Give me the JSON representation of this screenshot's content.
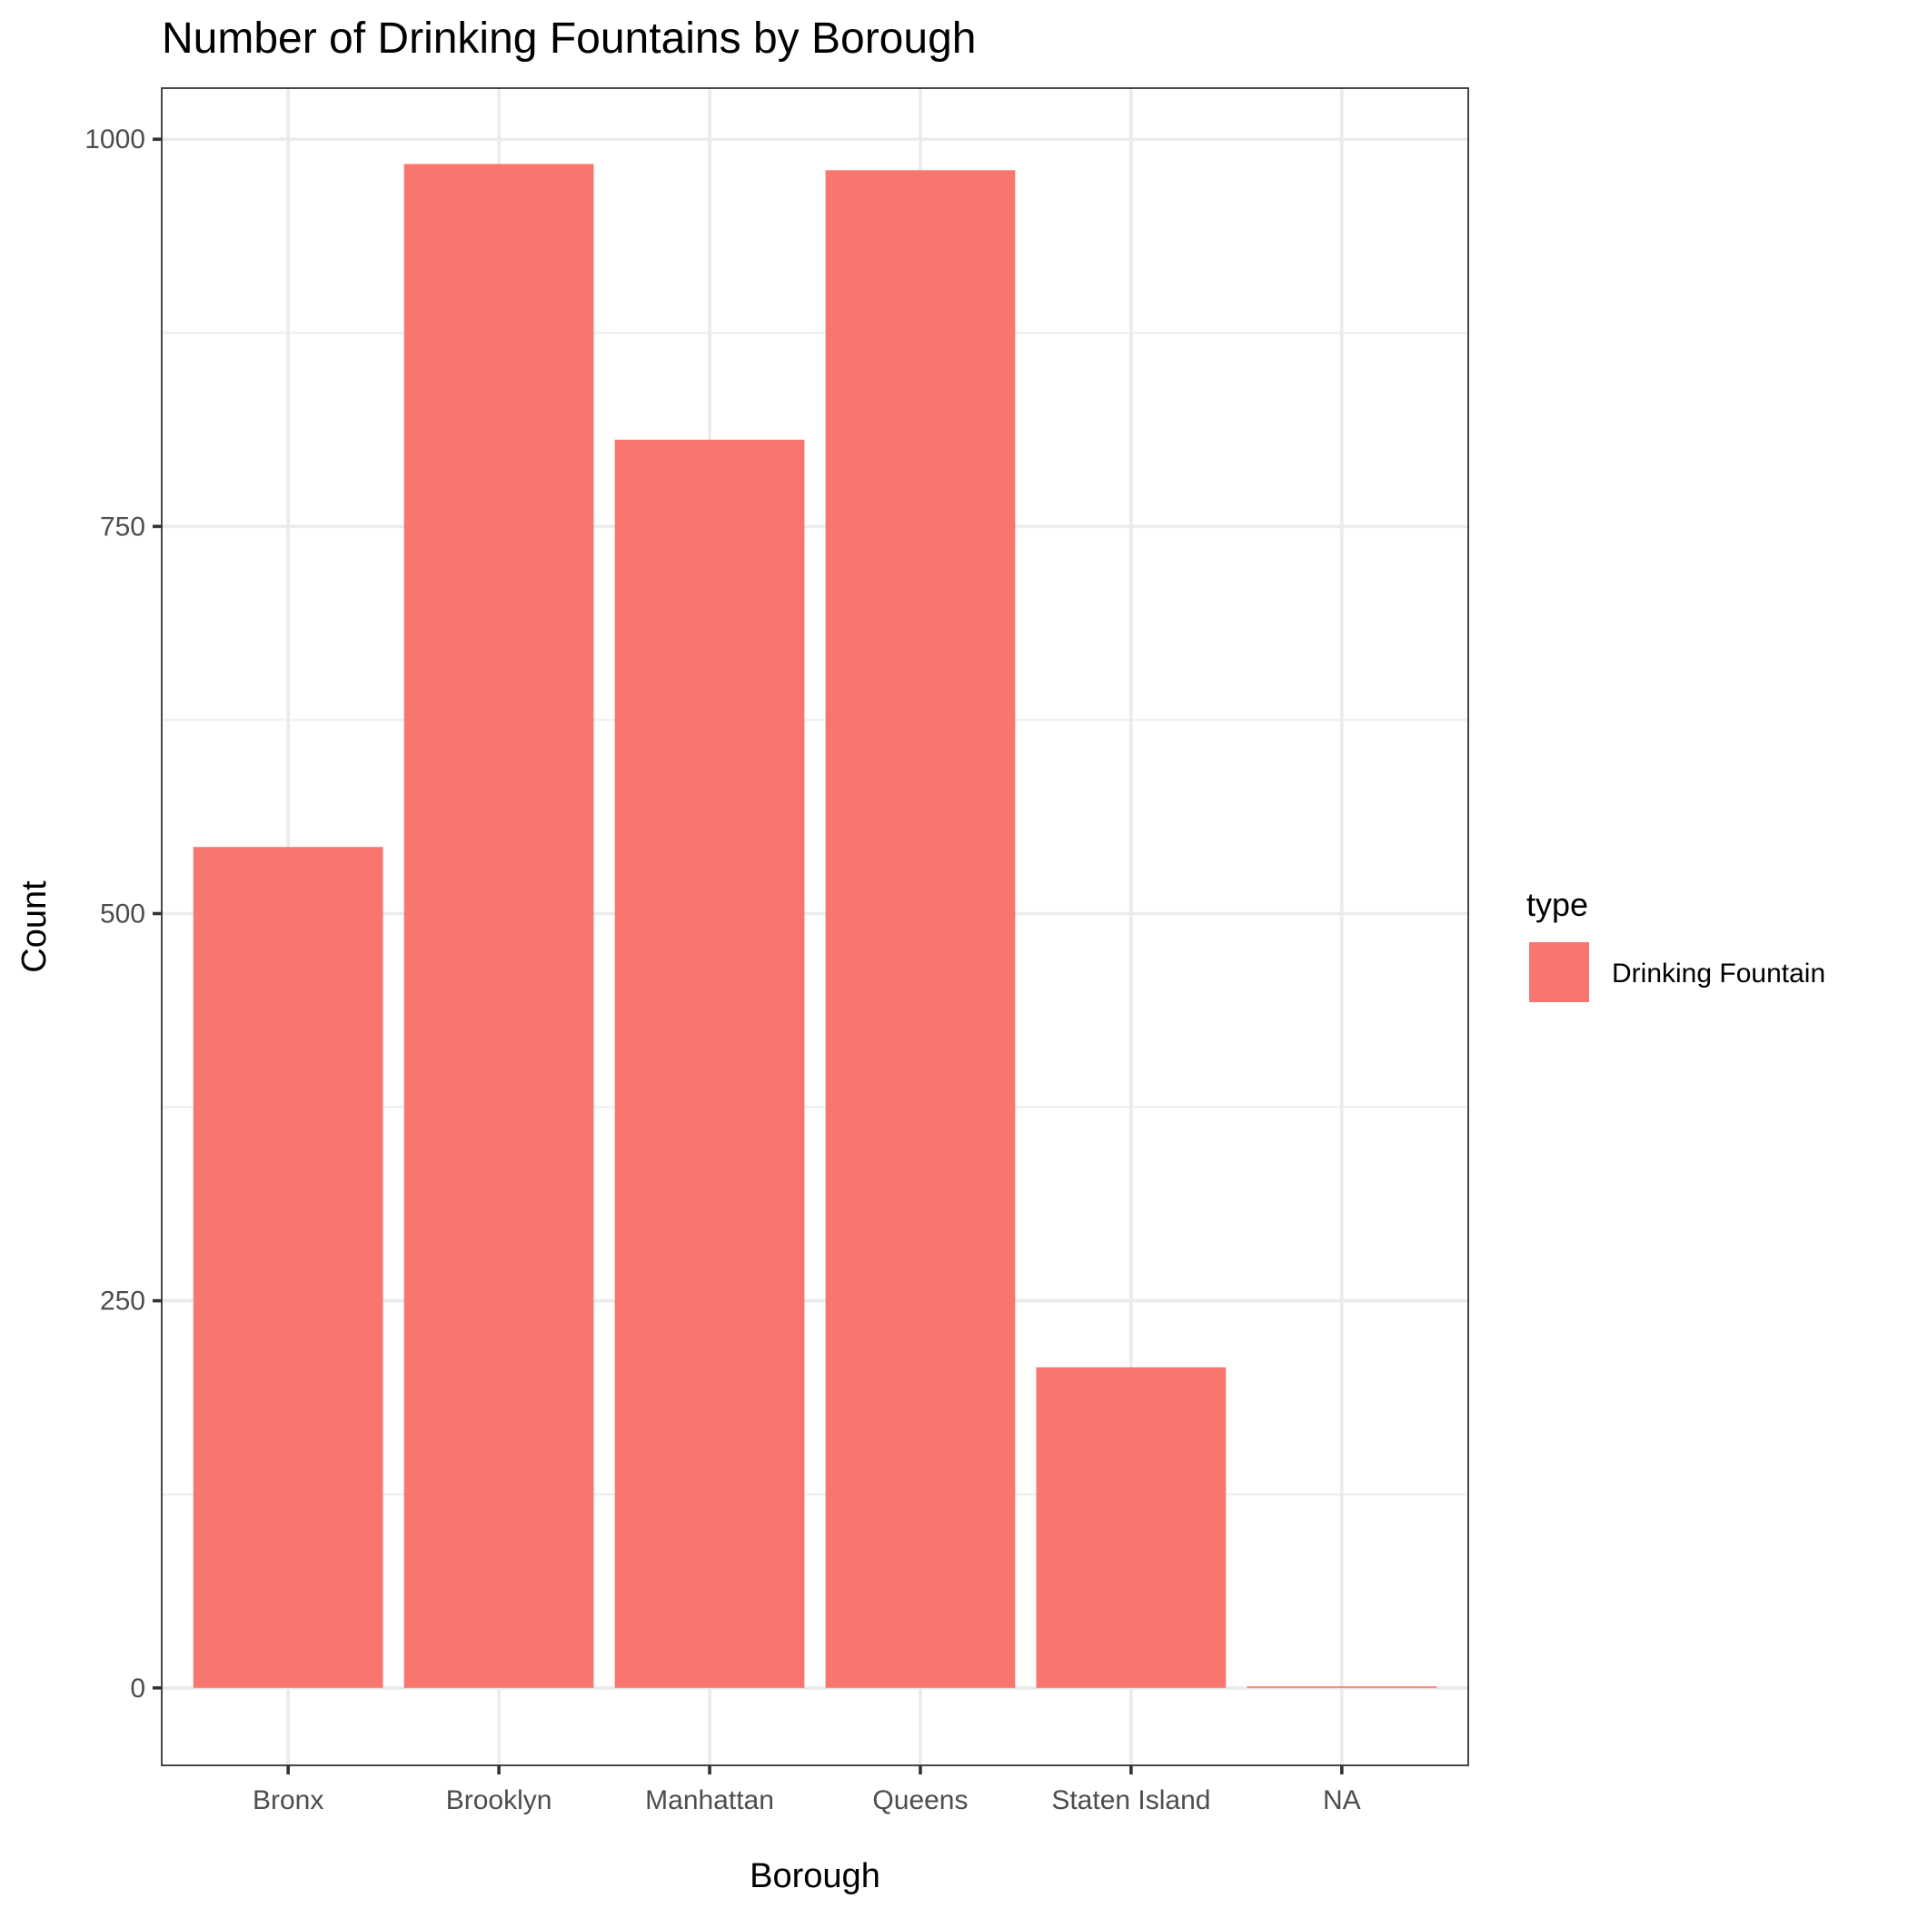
{
  "chart_data": {
    "type": "bar",
    "title": "Number of Drinking Fountains by Borough",
    "xlabel": "Borough",
    "ylabel": "Count",
    "categories": [
      "Bronx",
      "Brooklyn",
      "Manhattan",
      "Queens",
      "Staten Island",
      "NA"
    ],
    "series": [
      {
        "name": "Drinking Fountain",
        "values": [
          543,
          984,
          806,
          980,
          207,
          1
        ]
      }
    ],
    "ylim": [
      -50,
      1033
    ],
    "yticks": [
      0,
      250,
      500,
      750,
      1000
    ],
    "ytick_labels": [
      "0",
      "250",
      "500",
      "750",
      "1000"
    ],
    "grid": true,
    "legend": {
      "title": "type",
      "position": "right"
    },
    "colors": {
      "bar": "#F8766D",
      "grid": "#EBEBEB",
      "border": "#333333"
    }
  }
}
